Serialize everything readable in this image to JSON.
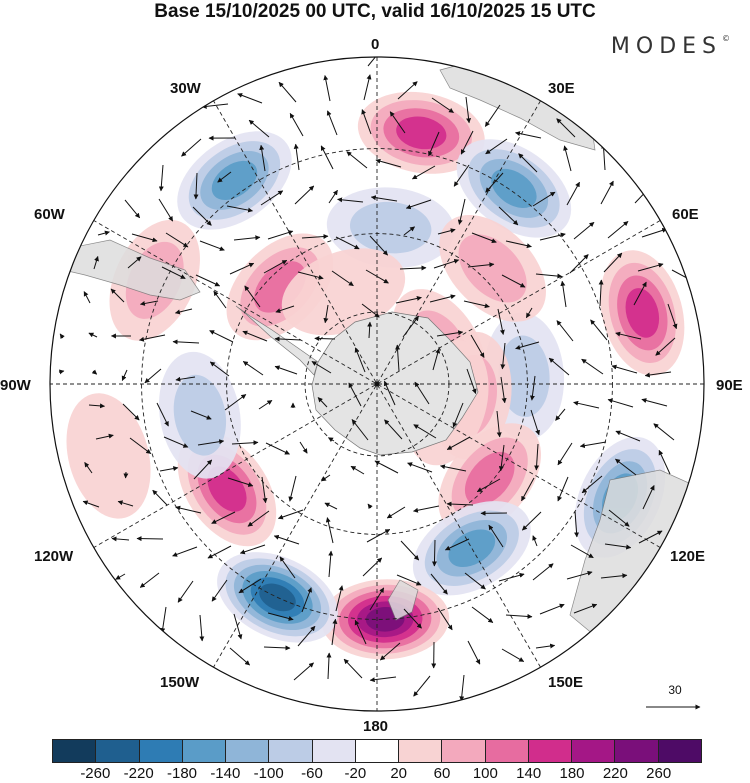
{
  "title": "Base 15/10/2025 00 UTC, valid 16/10/2025 15 UTC",
  "brand": {
    "text": "MODES",
    "mark": "©"
  },
  "longitude_labels": [
    "0",
    "30E",
    "60E",
    "90E",
    "120E",
    "150E",
    "180",
    "150W",
    "120W",
    "90W",
    "60W",
    "30W"
  ],
  "reference_vector": {
    "value": "30"
  },
  "colorbar": {
    "ticks": [
      "-260",
      "-220",
      "-180",
      "-140",
      "-100",
      "-60",
      "-20",
      "20",
      "60",
      "100",
      "140",
      "180",
      "220",
      "260"
    ],
    "colors": [
      "#123b5c",
      "#1f5f8f",
      "#2e7cb4",
      "#5a9cc8",
      "#8fb5d8",
      "#bccce6",
      "#e3e3f2",
      "#ffffff",
      "#f8d3d3",
      "#f3a9bd",
      "#e76ca0",
      "#d12d8c",
      "#a41786",
      "#7a0f7a",
      "#4e0b66"
    ]
  },
  "anomalies": [
    {
      "lon": 10,
      "r": 0.78,
      "value": 180
    },
    {
      "lon": 35,
      "r": 0.73,
      "value": -170
    },
    {
      "lon": 60,
      "r": 0.22,
      "value": 90
    },
    {
      "lon": 75,
      "r": 0.84,
      "value": 150
    },
    {
      "lon": 87,
      "r": 0.45,
      "value": -90
    },
    {
      "lon": 97,
      "r": 0.29,
      "value": 70
    },
    {
      "lon": 115,
      "r": 0.82,
      "value": -160
    },
    {
      "lon": 130,
      "r": 0.45,
      "value": 110
    },
    {
      "lon": 150,
      "r": 0.58,
      "value": -180
    },
    {
      "lon": 178,
      "r": 0.72,
      "value": 230
    },
    {
      "lon": -155,
      "r": 0.72,
      "value": -230
    },
    {
      "lon": -125,
      "r": 0.56,
      "value": 150
    },
    {
      "lon": -100,
      "r": 0.55,
      "value": -70
    },
    {
      "lon": -45,
      "r": 0.42,
      "value": 110
    },
    {
      "lon": -35,
      "r": 0.76,
      "value": -170
    },
    {
      "lon": -65,
      "r": 0.75,
      "value": 70
    },
    {
      "lon": 5,
      "r": 0.48,
      "value": -80
    },
    {
      "lon": 45,
      "r": 0.5,
      "value": 70
    },
    {
      "lon": 105,
      "r": 0.22,
      "value": 60
    },
    {
      "lon": -20,
      "r": 0.3,
      "value": 40
    },
    {
      "lon": -105,
      "r": 0.85,
      "value": 60
    }
  ]
}
